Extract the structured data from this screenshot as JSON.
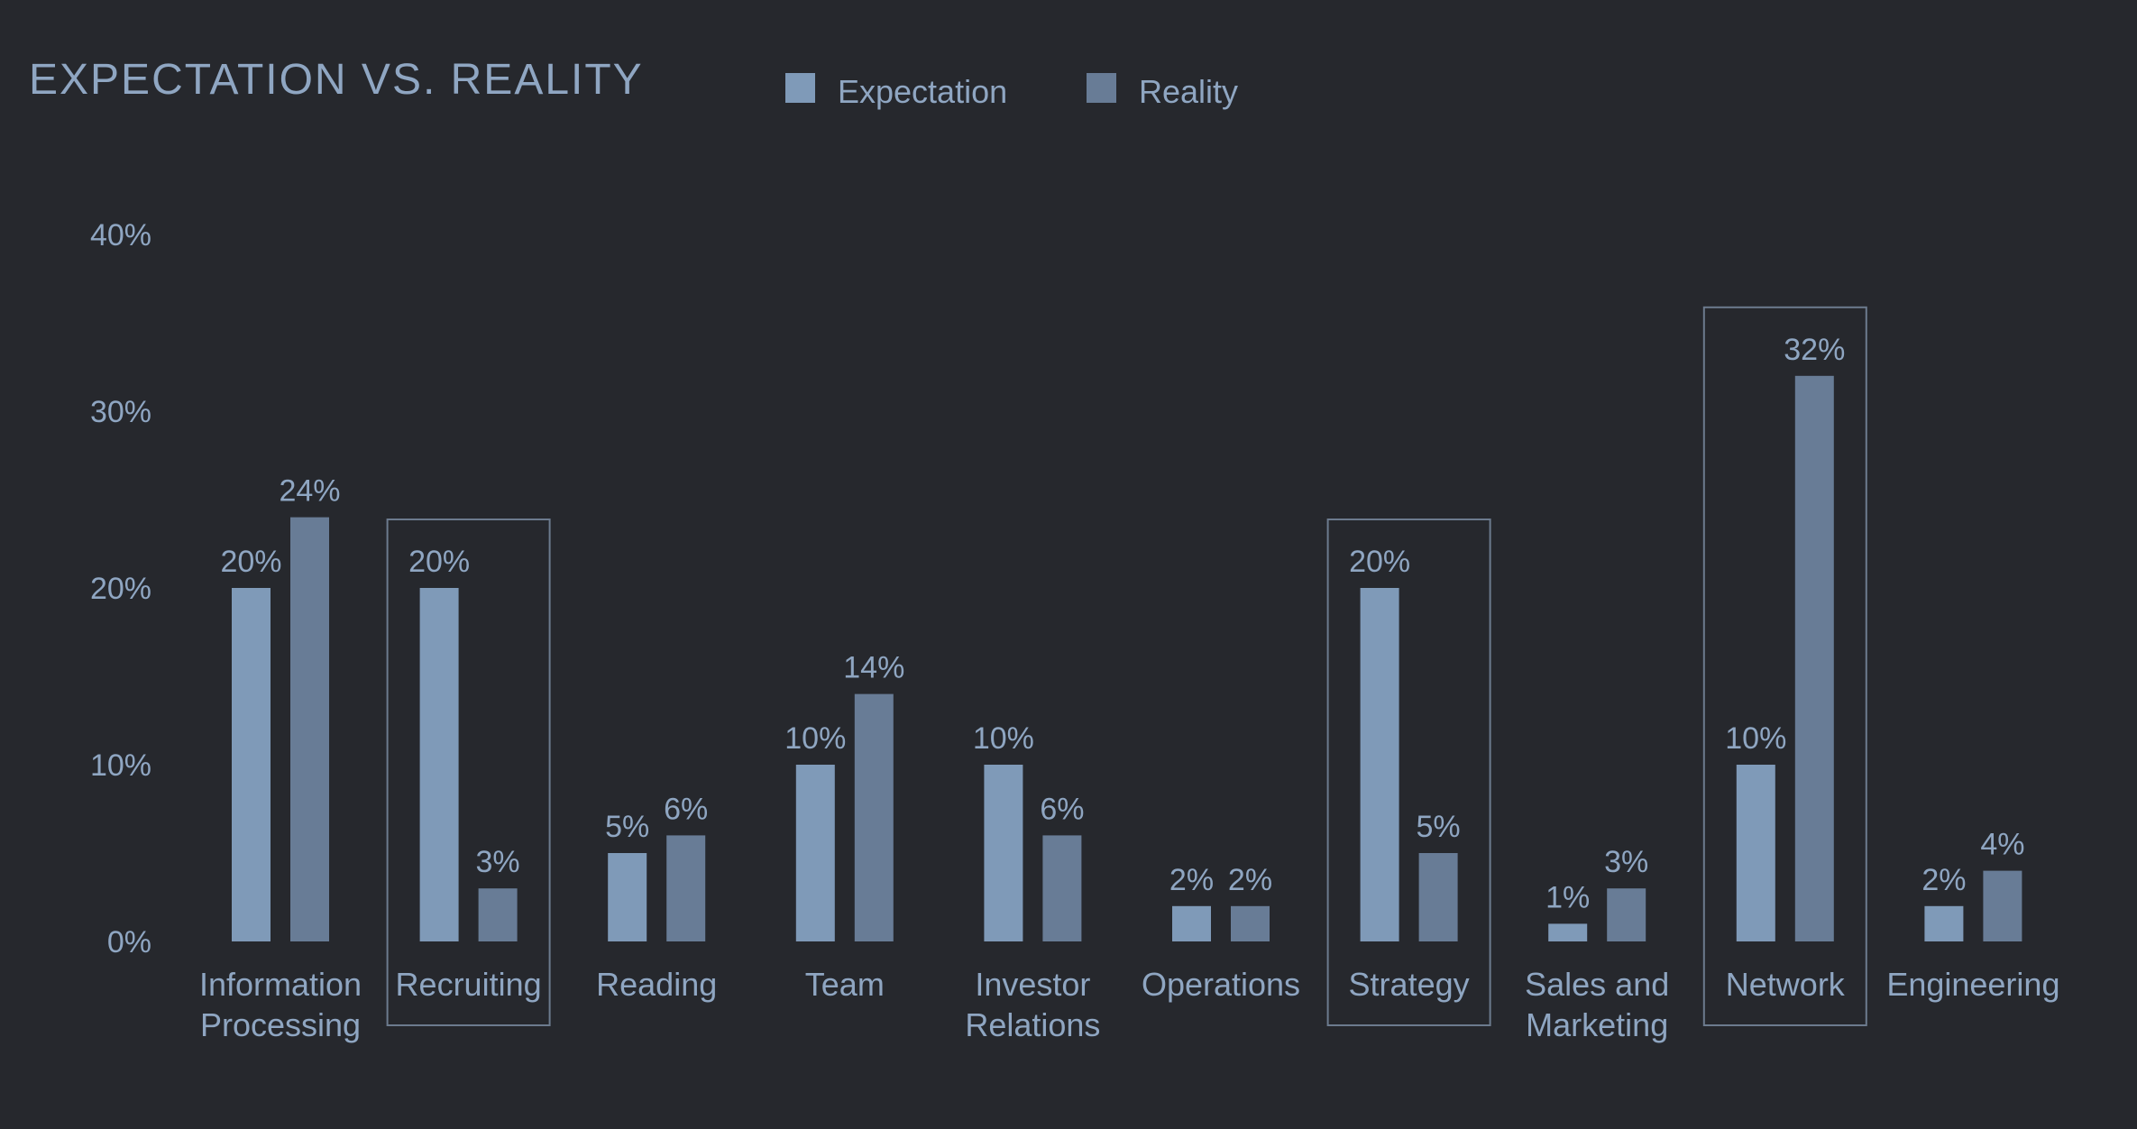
{
  "chart_data": {
    "type": "bar",
    "title": "EXPECTATION VS. REALITY",
    "xlabel": "",
    "ylabel": "",
    "ylim": [
      0,
      40
    ],
    "yticks": [
      0,
      10,
      20,
      30,
      40
    ],
    "ytick_labels": [
      "0%",
      "10%",
      "20%",
      "30%",
      "40%"
    ],
    "value_suffix": "%",
    "grid": false,
    "legend_position": "top",
    "categories": [
      [
        "Information",
        "Processing"
      ],
      [
        "Recruiting"
      ],
      [
        "Reading"
      ],
      [
        "Team"
      ],
      [
        "Investor",
        "Relations"
      ],
      [
        "Operations"
      ],
      [
        "Strategy"
      ],
      [
        "Sales and",
        "Marketing"
      ],
      [
        "Network"
      ],
      [
        "Engineering"
      ]
    ],
    "highlighted_categories": [
      "Recruiting",
      "Strategy",
      "Network"
    ],
    "series": [
      {
        "name": "Expectation",
        "color": "#7f9ab8",
        "values": [
          20,
          20,
          5,
          10,
          10,
          2,
          20,
          1,
          10,
          2
        ]
      },
      {
        "name": "Reality",
        "color": "#687c96",
        "values": [
          24,
          3,
          6,
          14,
          6,
          2,
          5,
          3,
          32,
          4
        ]
      }
    ],
    "colors": {
      "background": "#26282d",
      "text": "#8fa6c2",
      "highlight_border": "#6c7b8e"
    }
  }
}
